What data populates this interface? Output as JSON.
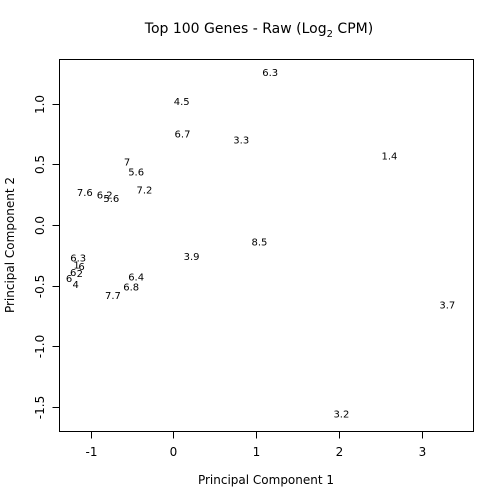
{
  "chart_data": {
    "type": "scatter",
    "title": {
      "prefix": "Top 100 Genes - Raw (Log",
      "subscript": "2",
      "suffix": " CPM)"
    },
    "xlabel": "Principal Component 1",
    "ylabel": "Principal Component 2",
    "xlim": [
      -1.37,
      3.62
    ],
    "ylim": [
      -1.7,
      1.36
    ],
    "x_ticks": [
      -1,
      0,
      1,
      2,
      3
    ],
    "x_tick_labels": [
      "-1",
      "0",
      "1",
      "2",
      "3"
    ],
    "y_ticks": [
      -1.5,
      -1.0,
      -0.5,
      0.0,
      0.5,
      1.0
    ],
    "y_tick_labels": [
      "-1.5",
      "-1.0",
      "-0.5",
      "0.0",
      "0.5",
      "1.0"
    ],
    "grid": false,
    "legend": "none",
    "marker": "text-label",
    "points": [
      {
        "label": "6.3",
        "x": 1.17,
        "y": 1.25
      },
      {
        "label": "4.5",
        "x": 0.1,
        "y": 1.01
      },
      {
        "label": "6.7",
        "x": 0.11,
        "y": 0.74
      },
      {
        "label": "3.3",
        "x": 0.82,
        "y": 0.69
      },
      {
        "label": "1.4",
        "x": 2.61,
        "y": 0.56
      },
      {
        "label": "7",
        "x": -0.56,
        "y": 0.51
      },
      {
        "label": "5.6",
        "x": -0.45,
        "y": 0.43
      },
      {
        "label": "7.2",
        "x": -0.35,
        "y": 0.28
      },
      {
        "label": "7.6",
        "x": -1.07,
        "y": 0.26
      },
      {
        "label": "6.2",
        "x": -0.83,
        "y": 0.24
      },
      {
        "label": "5.6",
        "x": -0.75,
        "y": 0.21
      },
      {
        "label": "8.5",
        "x": 1.04,
        "y": -0.15
      },
      {
        "label": "3.9",
        "x": 0.22,
        "y": -0.27
      },
      {
        "label": "6.3",
        "x": -1.15,
        "y": -0.28
      },
      {
        "label": "1",
        "x": -1.17,
        "y": -0.34
      },
      {
        "label": "6",
        "x": -1.11,
        "y": -0.35
      },
      {
        "label": "6",
        "x": -1.21,
        "y": -0.4
      },
      {
        "label": "2",
        "x": -1.13,
        "y": -0.41
      },
      {
        "label": "6",
        "x": -1.26,
        "y": -0.45
      },
      {
        "label": "4",
        "x": -1.18,
        "y": -0.5
      },
      {
        "label": "6.4",
        "x": -0.45,
        "y": -0.44
      },
      {
        "label": "6.8",
        "x": -0.51,
        "y": -0.52
      },
      {
        "label": "7.7",
        "x": -0.73,
        "y": -0.59
      },
      {
        "label": "3.7",
        "x": 3.31,
        "y": -0.67
      },
      {
        "label": "3.2",
        "x": 2.03,
        "y": -1.57
      }
    ]
  }
}
